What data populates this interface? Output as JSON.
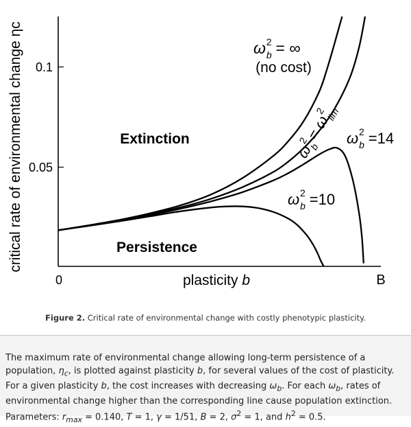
{
  "figure": {
    "label": "Figure 2.",
    "caption": "Critical rate of environmental change with costly phenotypic plasticity."
  },
  "chart_data": {
    "type": "line",
    "title": "",
    "xlabel": "plasticity b",
    "xlabel_main": "plasticity",
    "xlabel_var": "b",
    "ylabel": "critical rate of environmental change ηc",
    "x_ticks": [
      "0",
      "B"
    ],
    "y_ticks": [
      {
        "label": "0.05",
        "value": 0.05
      },
      {
        "label": "0.1",
        "value": 0.1
      }
    ],
    "xlim": [
      0,
      2
    ],
    "ylim": [
      0,
      0.125
    ],
    "region_labels": [
      "Extinction",
      "Persistence"
    ],
    "series": [
      {
        "name": "ω_b² = ∞ (no cost)",
        "label_main": "ω",
        "label_sub": "b",
        "label_sup": "2",
        "label_value": "= ∞",
        "label_note": "(no cost)",
        "x": [
          0,
          0.2,
          0.4,
          0.6,
          0.8,
          1.0,
          1.2,
          1.4,
          1.5,
          1.6,
          1.7,
          1.75,
          1.8,
          1.85
        ],
        "values": [
          0.018,
          0.0205,
          0.0232,
          0.0265,
          0.0305,
          0.036,
          0.044,
          0.055,
          0.0625,
          0.0725,
          0.087,
          0.098,
          0.111,
          0.125
        ]
      },
      {
        "name": "ω_b² = ω_lim²",
        "label_main": "ω",
        "label_sub": "b",
        "label_sup": "2",
        "label_value": "= ω",
        "label_value_sub": "lim",
        "label_value_sup": "2",
        "x": [
          0,
          0.2,
          0.4,
          0.6,
          0.8,
          1.0,
          1.2,
          1.4,
          1.5,
          1.6,
          1.7,
          1.8,
          1.9,
          1.96,
          2.0
        ],
        "values": [
          0.018,
          0.0204,
          0.0229,
          0.026,
          0.0295,
          0.0338,
          0.0395,
          0.047,
          0.0523,
          0.059,
          0.0675,
          0.0785,
          0.094,
          0.109,
          0.125
        ]
      },
      {
        "name": "ω_b² = 14",
        "label_main": "ω",
        "label_sub": "b",
        "label_sup": "2",
        "label_value": "=14",
        "x": [
          0,
          0.2,
          0.4,
          0.6,
          0.8,
          1.0,
          1.2,
          1.4,
          1.5,
          1.6,
          1.7,
          1.77,
          1.82,
          1.87,
          1.92,
          1.96,
          1.98,
          1.99
        ],
        "values": [
          0.018,
          0.0204,
          0.0228,
          0.0256,
          0.0288,
          0.0325,
          0.037,
          0.0428,
          0.0465,
          0.051,
          0.0558,
          0.0585,
          0.059,
          0.055,
          0.043,
          0.027,
          0.014,
          0.0015
        ]
      },
      {
        "name": "ω_b² = 10",
        "label_main": "ω",
        "label_sub": "b",
        "label_sup": "2",
        "label_value": "=10",
        "x": [
          0,
          0.2,
          0.4,
          0.6,
          0.8,
          1.0,
          1.1,
          1.2,
          1.3,
          1.4,
          1.5,
          1.56,
          1.62,
          1.66,
          1.69,
          1.71,
          1.73
        ],
        "values": [
          0.018,
          0.0202,
          0.0225,
          0.025,
          0.0275,
          0.0294,
          0.0299,
          0.0299,
          0.0291,
          0.0272,
          0.0238,
          0.0205,
          0.0155,
          0.011,
          0.0065,
          0.003,
          0.0
        ]
      }
    ]
  },
  "description": {
    "part1": "The maximum rate of environmental change allowing long-term persistence of a population, ",
    "eta": "η",
    "eta_sub": "c",
    "part2": ", is plotted against plasticity ",
    "b1": "b",
    "part3": ", for several values of the cost of plasticity. For a given plasticity ",
    "b2": "b",
    "part4": ", the cost increases with decreasing ",
    "omega1": "ω",
    "omega1_sub": "b",
    "part5": ". For each ",
    "omega2": "ω",
    "omega2_sub": "b",
    "part6": ", rates of environmental change higher than the corresponding line cause population extinction. Parameters: ",
    "rmax_r": "r",
    "rmax_sub": "max",
    "rmax_val": " = 0.140, ",
    "T_sym": "T",
    "T_val": " = 1, ",
    "gamma_sym": "γ",
    "gamma_val": " = 1/51, ",
    "B_sym": "B",
    "B_val": " = 2, ",
    "sigma_sym": "σ",
    "sigma_sup": "2",
    "sigma_val": " = 1, and ",
    "h_sym": "h",
    "h_sup": "2",
    "h_val": " = 0.5."
  }
}
